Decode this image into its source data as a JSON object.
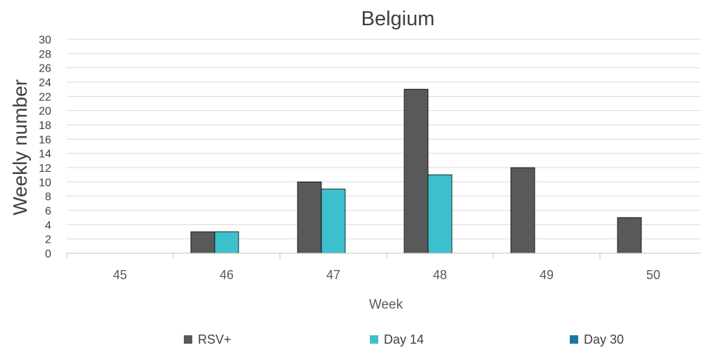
{
  "chart_data": {
    "type": "bar",
    "title": "Belgium",
    "xlabel": "Week",
    "ylabel": "Weekly number",
    "categories": [
      "45",
      "46",
      "47",
      "48",
      "49",
      "50"
    ],
    "ylim": [
      0,
      30
    ],
    "yticks": [
      0,
      2,
      4,
      6,
      8,
      10,
      12,
      14,
      16,
      18,
      20,
      22,
      24,
      26,
      28,
      30
    ],
    "grid": true,
    "legend_position": "bottom",
    "series": [
      {
        "name": "RSV+",
        "color": "#595959",
        "values": [
          0,
          3,
          10,
          23,
          12,
          5
        ]
      },
      {
        "name": "Day 14",
        "color": "#3CC0CC",
        "values": [
          0,
          3,
          9,
          11,
          0,
          0
        ]
      },
      {
        "name": "Day 30",
        "color": "#1779A0",
        "values": [
          0,
          0,
          0,
          0,
          0,
          0
        ]
      }
    ]
  }
}
